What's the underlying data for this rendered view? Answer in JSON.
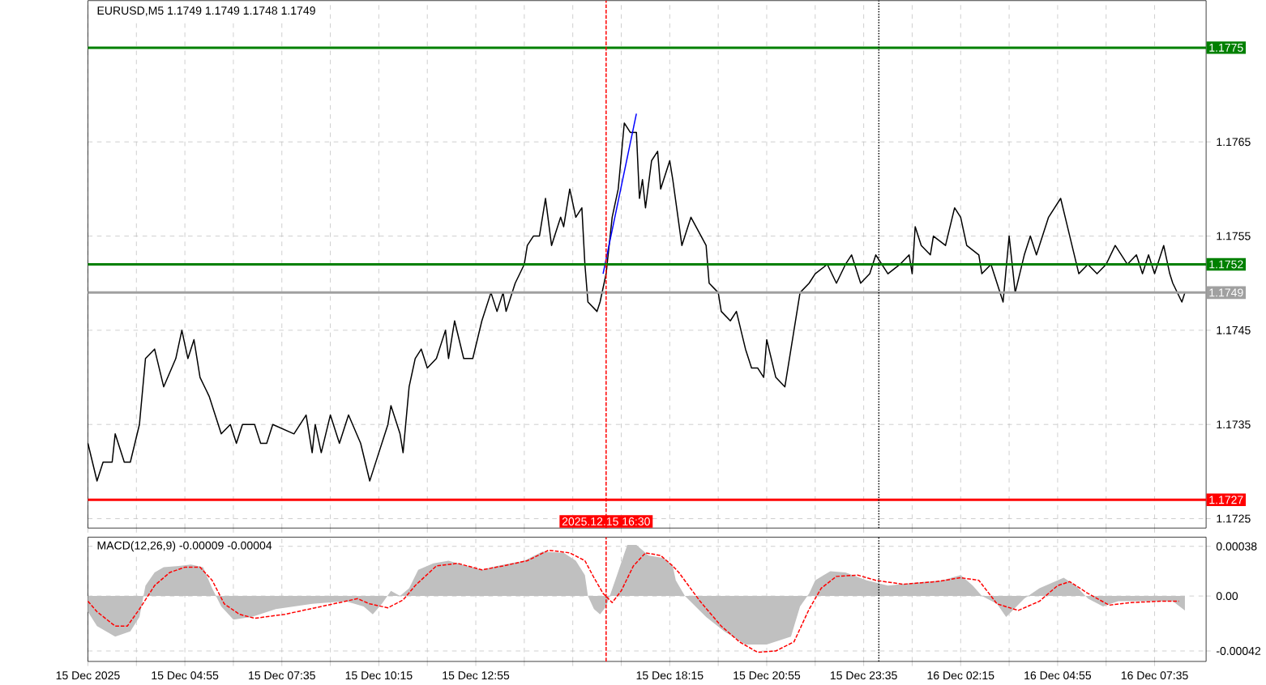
{
  "chart_data": [
    {
      "type": "line",
      "title": "EURUSD,M5  1.1749 1.1749 1.1748 1.1749",
      "xlim": [
        "2025-12-15T02:15",
        "2025-12-16T09:00"
      ],
      "ylim": [
        1.1724,
        1.178
      ],
      "xticks": [
        "2025-12-15T02:15",
        "2025-12-15T03:35",
        "2025-12-15T04:55",
        "2025-12-15T06:15",
        "2025-12-15T07:35",
        "2025-12-15T08:55",
        "2025-12-15T10:15",
        "2025-12-15T11:35",
        "2025-12-15T12:55",
        "2025-12-15T14:15",
        "2025-12-15T15:35",
        "2025-12-15T16:55",
        "2025-12-15T18:15",
        "2025-12-15T19:35",
        "2025-12-15T20:55",
        "2025-12-15T22:15",
        "2025-12-15T23:35",
        "2025-12-16T00:55",
        "2025-12-16T02:15",
        "2025-12-16T03:35",
        "2025-12-16T04:55",
        "2025-12-16T06:15",
        "2025-12-16T07:35"
      ],
      "yticks": [
        1.1725,
        1.1735,
        1.1745,
        1.1755,
        1.1765
      ],
      "tick_labels": "y",
      "grid": true,
      "ref_lines": [
        {
          "axis": "y",
          "value": 1.1775,
          "label": "1.1775",
          "color": "#008000"
        },
        {
          "axis": "y",
          "value": 1.1752,
          "label": "1.1752",
          "color": "#008000"
        },
        {
          "axis": "y",
          "value": 1.1749,
          "label": "1.1749",
          "color": "#a0a0a0"
        },
        {
          "axis": "y",
          "value": 1.1727,
          "label": "1.1727",
          "color": "#ff0000"
        },
        {
          "axis": "x",
          "value": "2025-12-15T16:30",
          "label": "2025.12.15 16:30",
          "color": "#ff0000",
          "line_style": "dashed"
        },
        {
          "axis": "x",
          "value": "2025-12-16T00:00",
          "color": "#000000",
          "line_style": "dotted"
        }
      ],
      "series": [
        {
          "color": "#000000",
          "x": [
            "2025-12-15T02:15",
            "2025-12-15T02:30",
            "2025-12-15T02:40",
            "2025-12-15T02:55",
            "2025-12-15T03:00",
            "2025-12-15T03:15",
            "2025-12-15T03:25",
            "2025-12-15T03:40",
            "2025-12-15T03:50",
            "2025-12-15T04:05",
            "2025-12-15T04:20",
            "2025-12-15T04:40",
            "2025-12-15T04:50",
            "2025-12-15T05:00",
            "2025-12-15T05:10",
            "2025-12-15T05:20",
            "2025-12-15T05:35",
            "2025-12-15T05:55",
            "2025-12-15T06:10",
            "2025-12-15T06:20",
            "2025-12-15T06:30",
            "2025-12-15T06:50",
            "2025-12-15T07:00",
            "2025-12-15T07:10",
            "2025-12-15T07:20",
            "2025-12-15T07:55",
            "2025-12-15T08:15",
            "2025-12-15T08:25",
            "2025-12-15T08:30",
            "2025-12-15T08:40",
            "2025-12-15T08:55",
            "2025-12-15T09:10",
            "2025-12-15T09:25",
            "2025-12-15T09:45",
            "2025-12-15T10:00",
            "2025-12-15T10:05",
            "2025-12-15T10:30",
            "2025-12-15T10:35",
            "2025-12-15T10:50",
            "2025-12-15T10:55",
            "2025-12-15T11:05",
            "2025-12-15T11:15",
            "2025-12-15T11:25",
            "2025-12-15T11:35",
            "2025-12-15T11:50",
            "2025-12-15T12:05",
            "2025-12-15T12:10",
            "2025-12-15T12:20",
            "2025-12-15T12:35",
            "2025-12-15T12:50",
            "2025-12-15T13:05",
            "2025-12-15T13:20",
            "2025-12-15T13:30",
            "2025-12-15T13:40",
            "2025-12-15T13:45",
            "2025-12-15T14:00",
            "2025-12-15T14:15",
            "2025-12-15T14:20",
            "2025-12-15T14:30",
            "2025-12-15T14:40",
            "2025-12-15T14:50",
            "2025-12-15T15:00",
            "2025-12-15T15:05",
            "2025-12-15T15:15",
            "2025-12-15T15:20",
            "2025-12-15T15:30",
            "2025-12-15T15:40",
            "2025-12-15T15:50",
            "2025-12-15T15:55",
            "2025-12-15T16:00",
            "2025-12-15T16:15",
            "2025-12-15T16:20",
            "2025-12-15T16:30",
            "2025-12-15T16:40",
            "2025-12-15T16:50",
            "2025-12-15T17:00",
            "2025-12-15T17:10",
            "2025-12-15T17:20",
            "2025-12-15T17:25",
            "2025-12-15T17:30",
            "2025-12-15T17:35",
            "2025-12-15T17:45",
            "2025-12-15T17:55",
            "2025-12-15T18:00",
            "2025-12-15T18:15",
            "2025-12-15T18:20",
            "2025-12-15T18:35",
            "2025-12-15T18:50",
            "2025-12-15T19:15",
            "2025-12-15T19:20",
            "2025-12-15T19:35",
            "2025-12-15T19:40",
            "2025-12-15T19:55",
            "2025-12-15T20:05",
            "2025-12-15T20:20",
            "2025-12-15T20:30",
            "2025-12-15T20:40",
            "2025-12-15T20:50",
            "2025-12-15T20:55",
            "2025-12-15T21:10",
            "2025-12-15T21:25",
            "2025-12-15T21:40",
            "2025-12-15T21:50",
            "2025-12-15T22:05",
            "2025-12-15T22:15",
            "2025-12-15T22:35",
            "2025-12-15T22:50",
            "2025-12-15T23:05",
            "2025-12-15T23:15",
            "2025-12-15T23:30",
            "2025-12-15T23:45",
            "2025-12-15T23:55",
            "2025-12-16T00:15",
            "2025-12-16T00:35",
            "2025-12-16T00:50",
            "2025-12-16T00:55",
            "2025-12-16T01:00",
            "2025-12-16T01:10",
            "2025-12-16T01:25",
            "2025-12-16T01:30",
            "2025-12-16T01:50",
            "2025-12-16T02:05",
            "2025-12-16T02:15",
            "2025-12-16T02:25",
            "2025-12-16T02:45",
            "2025-12-16T02:50",
            "2025-12-16T03:05",
            "2025-12-16T03:25",
            "2025-12-16T03:35",
            "2025-12-16T03:45",
            "2025-12-16T04:00",
            "2025-12-16T04:10",
            "2025-12-16T04:20",
            "2025-12-16T04:40",
            "2025-12-16T05:00",
            "2025-12-16T05:15",
            "2025-12-16T05:30",
            "2025-12-16T05:45",
            "2025-12-16T06:00",
            "2025-12-16T06:15",
            "2025-12-16T06:30",
            "2025-12-16T06:50",
            "2025-12-16T07:05",
            "2025-12-16T07:15",
            "2025-12-16T07:25",
            "2025-12-16T07:35",
            "2025-12-16T07:50",
            "2025-12-16T08:00",
            "2025-12-16T08:05",
            "2025-12-16T08:20",
            "2025-12-16T08:25"
          ],
          "values": [
            1.1733,
            1.1729,
            1.1731,
            1.1731,
            1.1734,
            1.1731,
            1.1731,
            1.1735,
            1.1742,
            1.1743,
            1.1739,
            1.1742,
            1.1745,
            1.1742,
            1.1744,
            1.174,
            1.1738,
            1.1734,
            1.1735,
            1.1733,
            1.1735,
            1.1735,
            1.1733,
            1.1733,
            1.1735,
            1.1734,
            1.1736,
            1.1732,
            1.1735,
            1.1732,
            1.1736,
            1.1733,
            1.1736,
            1.1733,
            1.1729,
            1.173,
            1.1735,
            1.1737,
            1.1734,
            1.1732,
            1.1739,
            1.1742,
            1.1743,
            1.1741,
            1.1742,
            1.1745,
            1.1742,
            1.1746,
            1.1742,
            1.1742,
            1.1746,
            1.1749,
            1.1747,
            1.1749,
            1.1747,
            1.175,
            1.1752,
            1.1754,
            1.1755,
            1.1755,
            1.1759,
            1.1754,
            1.1755,
            1.1757,
            1.1756,
            1.176,
            1.1757,
            1.1758,
            1.1752,
            1.1748,
            1.1747,
            1.1748,
            1.1751,
            1.1757,
            1.176,
            1.1767,
            1.1766,
            1.1766,
            1.1759,
            1.1761,
            1.1758,
            1.1763,
            1.1764,
            1.176,
            1.1763,
            1.1761,
            1.1754,
            1.1757,
            1.1754,
            1.175,
            1.1749,
            1.1747,
            1.1746,
            1.1747,
            1.1743,
            1.1741,
            1.1741,
            1.174,
            1.1744,
            1.174,
            1.1739,
            1.1745,
            1.1749,
            1.175,
            1.1751,
            1.1752,
            1.175,
            1.1752,
            1.1753,
            1.175,
            1.1751,
            1.1753,
            1.1751,
            1.1752,
            1.1753,
            1.1751,
            1.1756,
            1.1754,
            1.1753,
            1.1755,
            1.1754,
            1.1758,
            1.1757,
            1.1754,
            1.1753,
            1.1751,
            1.1752,
            1.1748,
            1.1755,
            1.1749,
            1.1753,
            1.1755,
            1.1753,
            1.1757,
            1.1759,
            1.1755,
            1.1751,
            1.1752,
            1.1751,
            1.1752,
            1.1754,
            1.1752,
            1.1753,
            1.1751,
            1.1753,
            1.1751,
            1.1754,
            1.1751,
            1.175,
            1.1748,
            1.1749
          ]
        },
        {
          "color": "#0000ff",
          "x": [
            "2025-12-15T16:25",
            "2025-12-15T17:20"
          ],
          "values": [
            1.1751,
            1.1768
          ]
        }
      ]
    },
    {
      "type": "line",
      "title": "MACD(12,26,9) -0.00009 -0.00004",
      "xlim": [
        "2025-12-15T02:15",
        "2025-12-16T09:00"
      ],
      "ylim": [
        -0.0005,
        0.00045
      ],
      "xticks": [
        {
          "value": "2025-12-15T02:15",
          "label": "15 Dec 2025"
        },
        {
          "value": "2025-12-15T03:35",
          "label": null
        },
        {
          "value": "2025-12-15T04:55",
          "label": "15 Dec 04:55"
        },
        {
          "value": "2025-12-15T06:15",
          "label": null
        },
        {
          "value": "2025-12-15T07:35",
          "label": "15 Dec 07:35"
        },
        {
          "value": "2025-12-15T08:55",
          "label": null
        },
        {
          "value": "2025-12-15T10:15",
          "label": "15 Dec 10:15"
        },
        {
          "value": "2025-12-15T11:35",
          "label": null
        },
        {
          "value": "2025-12-15T12:55",
          "label": "15 Dec 12:55"
        },
        {
          "value": "2025-12-15T14:15",
          "label": null
        },
        {
          "value": "2025-12-15T15:35",
          "label": null
        },
        {
          "value": "2025-12-15T16:55",
          "label": null
        },
        {
          "value": "2025-12-15T18:15",
          "label": "15 Dec 18:15"
        },
        {
          "value": "2025-12-15T19:35",
          "label": null
        },
        {
          "value": "2025-12-15T20:55",
          "label": "15 Dec 20:55"
        },
        {
          "value": "2025-12-15T22:15",
          "label": null
        },
        {
          "value": "2025-12-15T23:35",
          "label": "15 Dec 23:35"
        },
        {
          "value": "2025-12-16T00:55",
          "label": null
        },
        {
          "value": "2025-12-16T02:15",
          "label": "16 Dec 02:15"
        },
        {
          "value": "2025-12-16T03:35",
          "label": null
        },
        {
          "value": "2025-12-16T04:55",
          "label": "16 Dec 04:55"
        },
        {
          "value": "2025-12-16T06:15",
          "label": null
        },
        {
          "value": "2025-12-16T07:35",
          "label": "16 Dec 07:35"
        }
      ],
      "yticks": [
        -0.00042,
        {
          "value": 0,
          "label": "0.00"
        },
        0.00038
      ],
      "grid": true,
      "ref_lines": [
        {
          "axis": "x",
          "value": "2025-12-15T16:30",
          "color": "#ff0000",
          "line_style": "dashed"
        },
        {
          "axis": "x",
          "value": "2025-12-16T00:00",
          "color": "#000000",
          "line_style": "dotted"
        }
      ],
      "series": [
        {
          "type": "area",
          "color": "#c0c0c0",
          "x": [
            "2025-12-15T02:15",
            "2025-12-15T02:30",
            "2025-12-15T03:00",
            "2025-12-15T03:25",
            "2025-12-15T03:40",
            "2025-12-15T03:50",
            "2025-12-15T04:05",
            "2025-12-15T04:20",
            "2025-12-15T04:45",
            "2025-12-15T05:05",
            "2025-12-15T05:25",
            "2025-12-15T05:40",
            "2025-12-15T05:55",
            "2025-12-15T06:15",
            "2025-12-15T06:45",
            "2025-12-15T07:25",
            "2025-12-15T08:25",
            "2025-12-15T09:20",
            "2025-12-15T09:50",
            "2025-12-15T10:05",
            "2025-12-15T10:20",
            "2025-12-15T10:35",
            "2025-12-15T10:50",
            "2025-12-15T11:05",
            "2025-12-15T11:20",
            "2025-12-15T11:45",
            "2025-12-15T12:10",
            "2025-12-15T12:40",
            "2025-12-15T13:05",
            "2025-12-15T13:30",
            "2025-12-15T14:15",
            "2025-12-15T14:45",
            "2025-12-15T15:20",
            "2025-12-15T15:40",
            "2025-12-15T15:55",
            "2025-12-15T16:00",
            "2025-12-15T16:10",
            "2025-12-15T16:20",
            "2025-12-15T16:30",
            "2025-12-15T16:45",
            "2025-12-15T17:05",
            "2025-12-15T17:20",
            "2025-12-15T17:40",
            "2025-12-15T18:05",
            "2025-12-15T18:20",
            "2025-12-15T18:25",
            "2025-12-15T18:40",
            "2025-12-15T19:15",
            "2025-12-15T19:45",
            "2025-12-15T20:20",
            "2025-12-15T20:55",
            "2025-12-15T21:35",
            "2025-12-15T21:50",
            "2025-12-15T22:05",
            "2025-12-15T22:15",
            "2025-12-15T22:40",
            "2025-12-15T23:05",
            "2025-12-15T23:40",
            "2025-12-16T00:15",
            "2025-12-16T00:55",
            "2025-12-16T01:45",
            "2025-12-16T02:15",
            "2025-12-16T02:35",
            "2025-12-16T02:50",
            "2025-12-16T03:15",
            "2025-12-16T03:30",
            "2025-12-16T04:00",
            "2025-12-16T04:25",
            "2025-12-16T04:45",
            "2025-12-16T05:05",
            "2025-12-16T05:25",
            "2025-12-16T05:45",
            "2025-12-16T06:10",
            "2025-12-16T06:35",
            "2025-12-16T07:25",
            "2025-12-16T08:05",
            "2025-12-16T08:25"
          ],
          "values": [
            -0.00012,
            -0.00023,
            -0.00031,
            -0.00027,
            -0.00016,
            8e-05,
            0.00018,
            0.00022,
            0.00023,
            0.00024,
            0.00022,
            6e-05,
            -8e-05,
            -0.00018,
            -0.00016,
            -0.0001,
            -6e-05,
            -4e-05,
            -8e-05,
            -0.00014,
            -6e-05,
            4e-05,
            0,
            6e-05,
            0.0002,
            0.00025,
            0.00027,
            0.00023,
            0.0002,
            0.00023,
            0.00027,
            0.00034,
            0.00033,
            0.00027,
            0.00016,
            0,
            -0.0001,
            -0.00014,
            -8e-05,
            0.00012,
            0.00039,
            0.00039,
            0.00031,
            0.00029,
            0.00023,
            0.00012,
            0,
            -0.00016,
            -0.00027,
            -0.00037,
            -0.00037,
            -0.00031,
            -8e-05,
            2e-05,
            0.00012,
            0.00019,
            0.00018,
            0.00012,
            8e-05,
            0.0001,
            0.00012,
            0.00016,
            8e-05,
            0,
            -6e-05,
            -0.00016,
            -2e-05,
            6e-05,
            0.0001,
            0.00014,
            8e-05,
            -2e-05,
            -8e-05,
            -4e-05,
            -4e-05,
            -4e-05,
            -0.00011
          ]
        },
        {
          "type": "line",
          "color": "#ff0000",
          "line_style": "dashed",
          "x": [
            "2025-12-15T02:15",
            "2025-12-15T02:30",
            "2025-12-15T03:00",
            "2025-12-15T03:20",
            "2025-12-15T03:40",
            "2025-12-15T04:05",
            "2025-12-15T04:30",
            "2025-12-15T04:55",
            "2025-12-15T05:20",
            "2025-12-15T05:40",
            "2025-12-15T06:00",
            "2025-12-15T06:25",
            "2025-12-15T06:50",
            "2025-12-15T07:40",
            "2025-12-15T08:30",
            "2025-12-15T09:40",
            "2025-12-15T10:00",
            "2025-12-15T10:30",
            "2025-12-15T10:55",
            "2025-12-15T11:15",
            "2025-12-15T11:50",
            "2025-12-15T12:25",
            "2025-12-15T13:05",
            "2025-12-15T13:40",
            "2025-12-15T14:20",
            "2025-12-15T14:55",
            "2025-12-15T15:30",
            "2025-12-15T15:55",
            "2025-12-15T16:10",
            "2025-12-15T16:25",
            "2025-12-15T16:40",
            "2025-12-15T16:55",
            "2025-12-15T17:15",
            "2025-12-15T17:35",
            "2025-12-15T18:00",
            "2025-12-15T18:20",
            "2025-12-15T18:30",
            "2025-12-15T19:05",
            "2025-12-15T19:40",
            "2025-12-15T20:10",
            "2025-12-15T20:40",
            "2025-12-15T21:10",
            "2025-12-15T21:40",
            "2025-12-15T22:05",
            "2025-12-15T22:25",
            "2025-12-15T22:50",
            "2025-12-15T23:25",
            "2025-12-15T23:55",
            "2025-12-16T00:40",
            "2025-12-16T01:35",
            "2025-12-16T02:15",
            "2025-12-16T02:45",
            "2025-12-16T03:15",
            "2025-12-16T03:50",
            "2025-12-16T04:25",
            "2025-12-16T04:55",
            "2025-12-16T05:15",
            "2025-12-16T05:45",
            "2025-12-16T06:20",
            "2025-12-16T06:55",
            "2025-12-16T07:45",
            "2025-12-16T08:15"
          ],
          "values": [
            -4e-05,
            -0.00012,
            -0.00023,
            -0.00023,
            -0.0001,
            8e-05,
            0.00018,
            0.00022,
            0.00022,
            0.00012,
            -6e-05,
            -0.00014,
            -0.00017,
            -0.00014,
            -9e-05,
            -2e-05,
            -6e-05,
            -9e-05,
            -3e-05,
            8e-05,
            0.00023,
            0.00025,
            0.0002,
            0.00023,
            0.00027,
            0.00035,
            0.00033,
            0.00027,
            0.00014,
            2e-05,
            -5e-05,
            4e-05,
            0.00023,
            0.00033,
            0.00031,
            0.00023,
            0.00018,
            -4e-05,
            -0.00023,
            -0.00035,
            -0.00043,
            -0.00042,
            -0.00035,
            -0.0001,
            6e-05,
            0.00015,
            0.00016,
            0.00012,
            9e-05,
            0.00011,
            0.00014,
            0.00012,
            -6e-05,
            -0.00011,
            -4e-05,
            8e-05,
            0.00011,
            2e-05,
            -7e-05,
            -5e-05,
            -4e-05,
            -4e-05
          ]
        }
      ]
    }
  ]
}
